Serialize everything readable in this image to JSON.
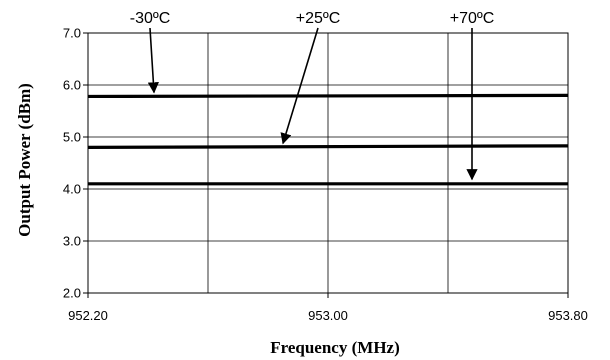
{
  "chart_data": {
    "type": "line",
    "title": "",
    "xlabel": "Frequency (MHz)",
    "ylabel": "Output Power (dBm)",
    "xlim": [
      952.2,
      953.8
    ],
    "ylim": [
      2.0,
      7.0
    ],
    "x_ticks": [
      "952.20",
      "953.00",
      "953.80"
    ],
    "y_ticks": [
      "2.0",
      "3.0",
      "4.0",
      "5.0",
      "6.0",
      "7.0"
    ],
    "grid": true,
    "x": [
      952.2,
      953.8
    ],
    "series": [
      {
        "name": "-30ºC",
        "values": [
          5.78,
          5.8
        ]
      },
      {
        "name": "+25ºC",
        "values": [
          4.8,
          4.83
        ]
      },
      {
        "name": "+70ºC",
        "values": [
          4.1,
          4.1
        ]
      }
    ],
    "annotations": [
      {
        "text": "-30ºC",
        "series": "-30ºC",
        "arrow_to": {
          "x": 952.42,
          "y": 5.8
        }
      },
      {
        "text": "+25ºC",
        "series": "+25ºC",
        "arrow_to": {
          "x": 952.85,
          "y": 4.82
        }
      },
      {
        "text": "+70ºC",
        "series": "+70ºC",
        "arrow_to": {
          "x": 953.48,
          "y": 4.13
        }
      }
    ]
  }
}
